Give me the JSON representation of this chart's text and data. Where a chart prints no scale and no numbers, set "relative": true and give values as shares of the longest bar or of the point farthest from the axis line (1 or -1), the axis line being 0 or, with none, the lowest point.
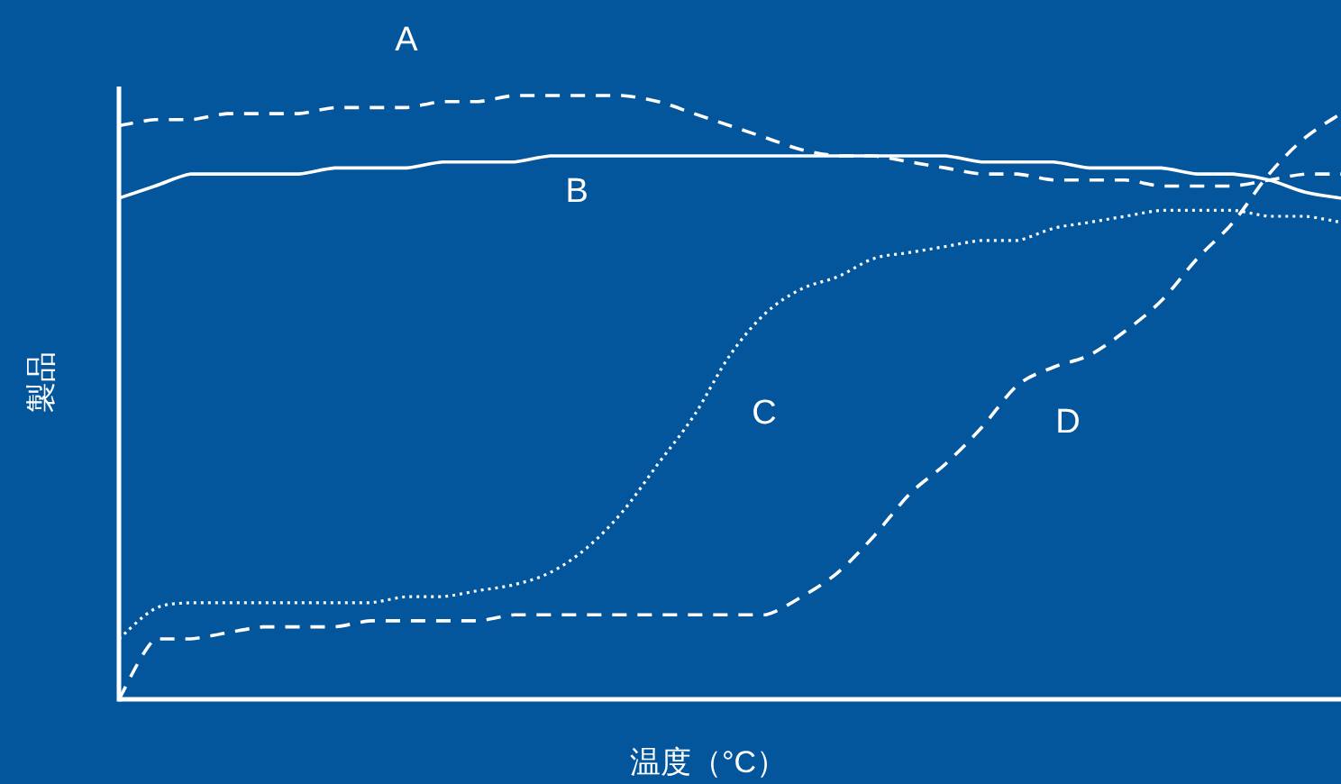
{
  "chart_data": {
    "type": "line",
    "relative": true,
    "xlabel": "温度（°C）",
    "ylabel": "製品",
    "categories": [
      null,
      null,
      null,
      null,
      null,
      null,
      null,
      null,
      null,
      null,
      null,
      null,
      null,
      null,
      null,
      null,
      null,
      null,
      null,
      null,
      null,
      null,
      null,
      null,
      null,
      null,
      null,
      null,
      null,
      null,
      null,
      null,
      null,
      null,
      null
    ],
    "series": [
      {
        "name": "A",
        "color": "#ffffff",
        "line_style": "dashed",
        "values": [
          0.95,
          0.96,
          0.96,
          0.97,
          0.97,
          0.97,
          0.98,
          0.98,
          0.98,
          0.99,
          0.99,
          1.0,
          1.0,
          1.0,
          1.0,
          0.99,
          0.97,
          0.95,
          0.93,
          0.91,
          0.9,
          0.9,
          0.89,
          0.88,
          0.87,
          0.87,
          0.86,
          0.86,
          0.86,
          0.85,
          0.85,
          0.85,
          0.86,
          0.87,
          0.87
        ]
      },
      {
        "name": "B",
        "color": "#ffffff",
        "line_style": "solid",
        "values": [
          0.83,
          0.85,
          0.87,
          0.87,
          0.87,
          0.87,
          0.88,
          0.88,
          0.88,
          0.89,
          0.89,
          0.89,
          0.9,
          0.9,
          0.9,
          0.9,
          0.9,
          0.9,
          0.9,
          0.9,
          0.9,
          0.9,
          0.9,
          0.9,
          0.89,
          0.89,
          0.89,
          0.88,
          0.88,
          0.88,
          0.87,
          0.87,
          0.86,
          0.84,
          0.83
        ]
      },
      {
        "name": "C",
        "color": "#ffffff",
        "line_style": "dotted",
        "values": [
          0.1,
          0.15,
          0.16,
          0.16,
          0.16,
          0.16,
          0.16,
          0.16,
          0.17,
          0.17,
          0.18,
          0.19,
          0.21,
          0.25,
          0.31,
          0.39,
          0.47,
          0.57,
          0.64,
          0.68,
          0.7,
          0.73,
          0.74,
          0.75,
          0.76,
          0.76,
          0.78,
          0.79,
          0.8,
          0.81,
          0.81,
          0.81,
          0.8,
          0.8,
          0.79
        ]
      },
      {
        "name": "D",
        "color": "#ffffff",
        "line_style": "dashed",
        "values": [
          0,
          0.1,
          0.1,
          0.11,
          0.12,
          0.12,
          0.12,
          0.13,
          0.13,
          0.13,
          0.13,
          0.14,
          0.14,
          0.14,
          0.14,
          0.14,
          0.14,
          0.14,
          0.14,
          0.17,
          0.21,
          0.27,
          0.34,
          0.39,
          0.45,
          0.52,
          0.55,
          0.57,
          0.61,
          0.66,
          0.73,
          0.79,
          0.87,
          0.93,
          0.97
        ]
      }
    ]
  }
}
